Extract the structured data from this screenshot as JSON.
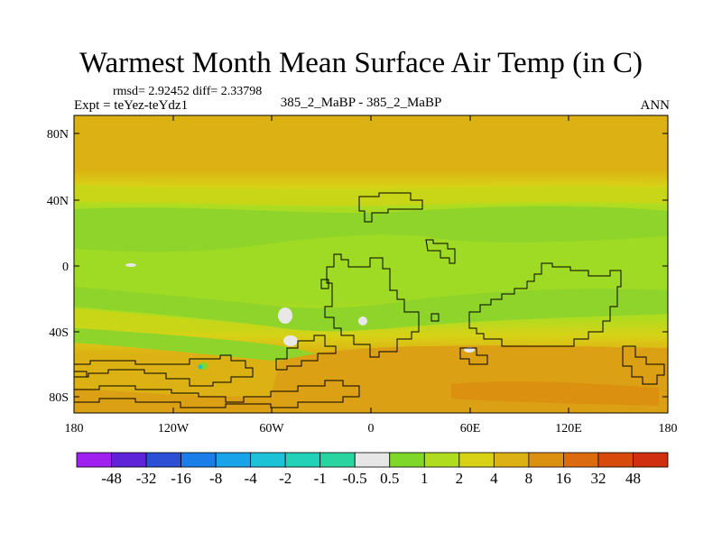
{
  "title": "Warmest Month Mean Surface Air Temp (in C)",
  "stats": "rmsd= 2.92452 diff= 2.33798",
  "expt": "Expt = teYez-teYdz1",
  "center_label": "385_2_MaBP - 385_2_MaBP",
  "period": "ANN",
  "map": {
    "projection": "cylindrical equidistant",
    "lon_range": [
      -180,
      180
    ],
    "lat_range": [
      -90,
      90
    ],
    "lat_ticks": [
      "80N",
      "40N",
      "0",
      "40S",
      "80S"
    ],
    "lon_ticks": [
      "180",
      "120W",
      "60W",
      "0",
      "60E",
      "120E",
      "180"
    ],
    "dominant_fill": "orange (8 to 16) poleward, green-yellow (1 to 4) in tropics"
  },
  "colorbar": {
    "labels": [
      "-48",
      "-32",
      "-16",
      "-8",
      "-4",
      "-2",
      "-1",
      "-0.5",
      "0.5",
      "1",
      "2",
      "4",
      "8",
      "16",
      "32",
      "48"
    ],
    "colors": [
      "#a020f0",
      "#5e25d8",
      "#2b50d6",
      "#1a7de8",
      "#19a3e8",
      "#1ec2d8",
      "#22d2b8",
      "#2ad4a0",
      "#e6e6e6",
      "#7fd72a",
      "#b0dc20",
      "#d8d216",
      "#dcb114",
      "#dc9010",
      "#dc6a0e",
      "#d84a0c",
      "#d03010"
    ]
  }
}
